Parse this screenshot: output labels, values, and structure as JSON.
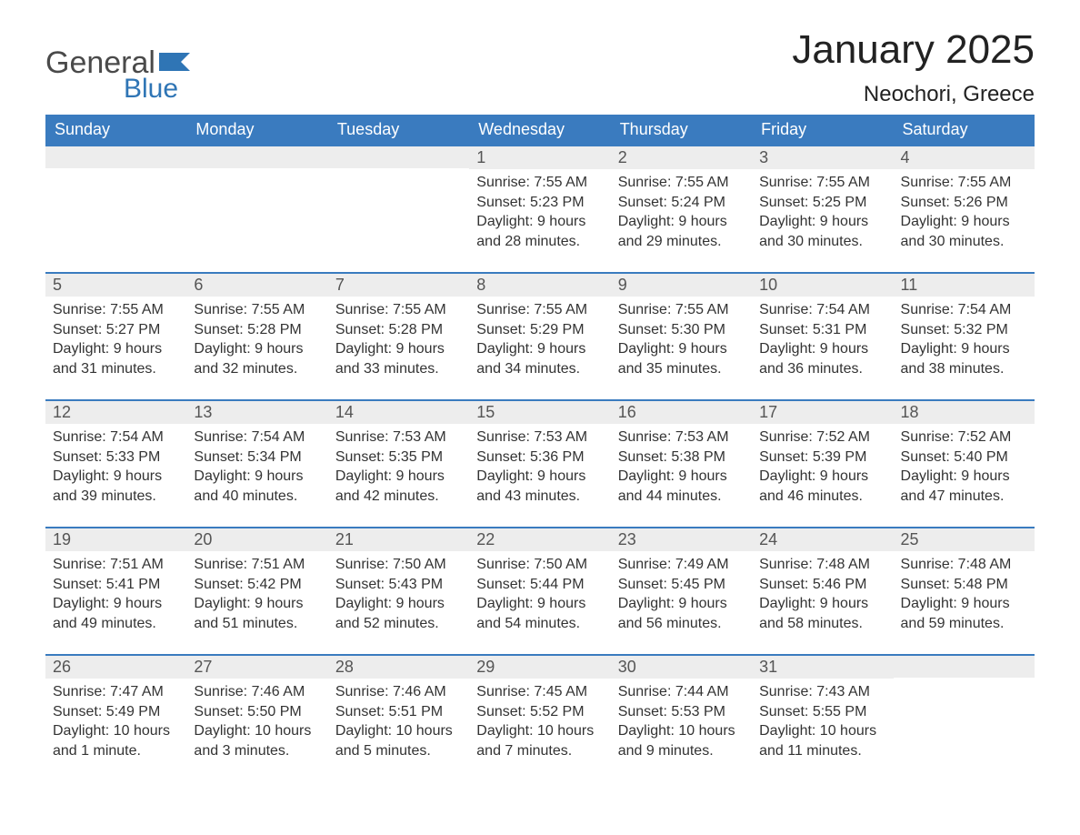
{
  "logo": {
    "word1": "General",
    "word2": "Blue"
  },
  "title": "January 2025",
  "location": "Neochori, Greece",
  "colors": {
    "header_bg": "#3a7bbf",
    "header_text": "#ffffff",
    "daynum_bg": "#ededed",
    "border": "#3a7bbf",
    "logo_general": "#4a4a4a",
    "logo_blue": "#2f75b5"
  },
  "weekdays": [
    "Sunday",
    "Monday",
    "Tuesday",
    "Wednesday",
    "Thursday",
    "Friday",
    "Saturday"
  ],
  "weeks": [
    [
      null,
      null,
      null,
      {
        "n": "1",
        "sunrise": "Sunrise: 7:55 AM",
        "sunset": "Sunset: 5:23 PM",
        "daylight": "Daylight: 9 hours and 28 minutes."
      },
      {
        "n": "2",
        "sunrise": "Sunrise: 7:55 AM",
        "sunset": "Sunset: 5:24 PM",
        "daylight": "Daylight: 9 hours and 29 minutes."
      },
      {
        "n": "3",
        "sunrise": "Sunrise: 7:55 AM",
        "sunset": "Sunset: 5:25 PM",
        "daylight": "Daylight: 9 hours and 30 minutes."
      },
      {
        "n": "4",
        "sunrise": "Sunrise: 7:55 AM",
        "sunset": "Sunset: 5:26 PM",
        "daylight": "Daylight: 9 hours and 30 minutes."
      }
    ],
    [
      {
        "n": "5",
        "sunrise": "Sunrise: 7:55 AM",
        "sunset": "Sunset: 5:27 PM",
        "daylight": "Daylight: 9 hours and 31 minutes."
      },
      {
        "n": "6",
        "sunrise": "Sunrise: 7:55 AM",
        "sunset": "Sunset: 5:28 PM",
        "daylight": "Daylight: 9 hours and 32 minutes."
      },
      {
        "n": "7",
        "sunrise": "Sunrise: 7:55 AM",
        "sunset": "Sunset: 5:28 PM",
        "daylight": "Daylight: 9 hours and 33 minutes."
      },
      {
        "n": "8",
        "sunrise": "Sunrise: 7:55 AM",
        "sunset": "Sunset: 5:29 PM",
        "daylight": "Daylight: 9 hours and 34 minutes."
      },
      {
        "n": "9",
        "sunrise": "Sunrise: 7:55 AM",
        "sunset": "Sunset: 5:30 PM",
        "daylight": "Daylight: 9 hours and 35 minutes."
      },
      {
        "n": "10",
        "sunrise": "Sunrise: 7:54 AM",
        "sunset": "Sunset: 5:31 PM",
        "daylight": "Daylight: 9 hours and 36 minutes."
      },
      {
        "n": "11",
        "sunrise": "Sunrise: 7:54 AM",
        "sunset": "Sunset: 5:32 PM",
        "daylight": "Daylight: 9 hours and 38 minutes."
      }
    ],
    [
      {
        "n": "12",
        "sunrise": "Sunrise: 7:54 AM",
        "sunset": "Sunset: 5:33 PM",
        "daylight": "Daylight: 9 hours and 39 minutes."
      },
      {
        "n": "13",
        "sunrise": "Sunrise: 7:54 AM",
        "sunset": "Sunset: 5:34 PM",
        "daylight": "Daylight: 9 hours and 40 minutes."
      },
      {
        "n": "14",
        "sunrise": "Sunrise: 7:53 AM",
        "sunset": "Sunset: 5:35 PM",
        "daylight": "Daylight: 9 hours and 42 minutes."
      },
      {
        "n": "15",
        "sunrise": "Sunrise: 7:53 AM",
        "sunset": "Sunset: 5:36 PM",
        "daylight": "Daylight: 9 hours and 43 minutes."
      },
      {
        "n": "16",
        "sunrise": "Sunrise: 7:53 AM",
        "sunset": "Sunset: 5:38 PM",
        "daylight": "Daylight: 9 hours and 44 minutes."
      },
      {
        "n": "17",
        "sunrise": "Sunrise: 7:52 AM",
        "sunset": "Sunset: 5:39 PM",
        "daylight": "Daylight: 9 hours and 46 minutes."
      },
      {
        "n": "18",
        "sunrise": "Sunrise: 7:52 AM",
        "sunset": "Sunset: 5:40 PM",
        "daylight": "Daylight: 9 hours and 47 minutes."
      }
    ],
    [
      {
        "n": "19",
        "sunrise": "Sunrise: 7:51 AM",
        "sunset": "Sunset: 5:41 PM",
        "daylight": "Daylight: 9 hours and 49 minutes."
      },
      {
        "n": "20",
        "sunrise": "Sunrise: 7:51 AM",
        "sunset": "Sunset: 5:42 PM",
        "daylight": "Daylight: 9 hours and 51 minutes."
      },
      {
        "n": "21",
        "sunrise": "Sunrise: 7:50 AM",
        "sunset": "Sunset: 5:43 PM",
        "daylight": "Daylight: 9 hours and 52 minutes."
      },
      {
        "n": "22",
        "sunrise": "Sunrise: 7:50 AM",
        "sunset": "Sunset: 5:44 PM",
        "daylight": "Daylight: 9 hours and 54 minutes."
      },
      {
        "n": "23",
        "sunrise": "Sunrise: 7:49 AM",
        "sunset": "Sunset: 5:45 PM",
        "daylight": "Daylight: 9 hours and 56 minutes."
      },
      {
        "n": "24",
        "sunrise": "Sunrise: 7:48 AM",
        "sunset": "Sunset: 5:46 PM",
        "daylight": "Daylight: 9 hours and 58 minutes."
      },
      {
        "n": "25",
        "sunrise": "Sunrise: 7:48 AM",
        "sunset": "Sunset: 5:48 PM",
        "daylight": "Daylight: 9 hours and 59 minutes."
      }
    ],
    [
      {
        "n": "26",
        "sunrise": "Sunrise: 7:47 AM",
        "sunset": "Sunset: 5:49 PM",
        "daylight": "Daylight: 10 hours and 1 minute."
      },
      {
        "n": "27",
        "sunrise": "Sunrise: 7:46 AM",
        "sunset": "Sunset: 5:50 PM",
        "daylight": "Daylight: 10 hours and 3 minutes."
      },
      {
        "n": "28",
        "sunrise": "Sunrise: 7:46 AM",
        "sunset": "Sunset: 5:51 PM",
        "daylight": "Daylight: 10 hours and 5 minutes."
      },
      {
        "n": "29",
        "sunrise": "Sunrise: 7:45 AM",
        "sunset": "Sunset: 5:52 PM",
        "daylight": "Daylight: 10 hours and 7 minutes."
      },
      {
        "n": "30",
        "sunrise": "Sunrise: 7:44 AM",
        "sunset": "Sunset: 5:53 PM",
        "daylight": "Daylight: 10 hours and 9 minutes."
      },
      {
        "n": "31",
        "sunrise": "Sunrise: 7:43 AM",
        "sunset": "Sunset: 5:55 PM",
        "daylight": "Daylight: 10 hours and 11 minutes."
      },
      null
    ]
  ]
}
